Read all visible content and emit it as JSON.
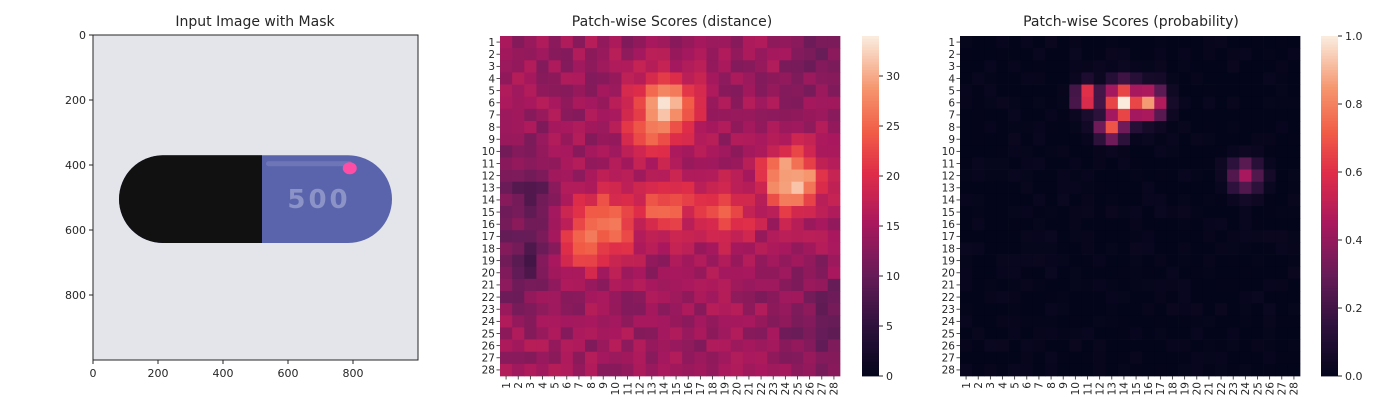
{
  "chart_data": [
    {
      "type": "image",
      "title": "Input Image with Mask",
      "xlim": [
        0,
        1000
      ],
      "ylim": [
        1000,
        0
      ],
      "xticks": [
        0,
        200,
        400,
        600,
        800
      ],
      "yticks": [
        0,
        200,
        400,
        600,
        800
      ],
      "image": {
        "background_color": "#e4e5eb",
        "object": "capsule",
        "object_label": "500",
        "cap_color": "#111111",
        "body_color": "#5a64ad",
        "mask_color": "#ff4da6",
        "capsule_extent_x": [
          80,
          920
        ],
        "capsule_extent_y": [
          370,
          640
        ],
        "cap_boundary_x": 520,
        "mask_center": [
          790,
          410
        ]
      }
    },
    {
      "type": "heatmap",
      "title": "Patch-wise Scores (distance)",
      "rows": 28,
      "cols": 28,
      "row_labels": [
        "1",
        "2",
        "3",
        "4",
        "5",
        "6",
        "7",
        "8",
        "9",
        "10",
        "11",
        "12",
        "13",
        "14",
        "15",
        "16",
        "17",
        "18",
        "19",
        "20",
        "21",
        "22",
        "23",
        "24",
        "25",
        "26",
        "27",
        "28"
      ],
      "col_labels": [
        "1",
        "2",
        "3",
        "4",
        "5",
        "6",
        "7",
        "8",
        "9",
        "10",
        "11",
        "12",
        "13",
        "14",
        "15",
        "16",
        "17",
        "18",
        "19",
        "20",
        "21",
        "22",
        "23",
        "24",
        "25",
        "26",
        "27",
        "28"
      ],
      "colormap": "rocket",
      "vmin": 0,
      "vmax": 34,
      "colorbar_ticks": [
        0,
        5,
        10,
        15,
        20,
        25,
        30
      ],
      "baseline": 14.5,
      "hotspots": [
        {
          "row": 6.5,
          "col": 14,
          "peak": 34,
          "sigma": 1.7
        },
        {
          "row": 8.5,
          "col": 13,
          "peak": 28,
          "sigma": 1.4
        },
        {
          "row": 12.3,
          "col": 24.5,
          "peak": 32,
          "sigma": 1.8
        },
        {
          "row": 16.2,
          "col": 9,
          "peak": 27,
          "sigma": 2.0
        },
        {
          "row": 17.5,
          "col": 7.5,
          "peak": 25,
          "sigma": 1.6
        },
        {
          "row": 14.5,
          "col": 14,
          "peak": 25,
          "sigma": 1.8
        },
        {
          "row": 15.2,
          "col": 19,
          "peak": 23,
          "sigma": 1.9
        }
      ],
      "low_regions": [
        {
          "row": 19,
          "col": 2.5,
          "value": 9,
          "sigma": 2.2
        },
        {
          "row": 13,
          "col": 2.5,
          "value": 10,
          "sigma": 2.0
        },
        {
          "row": 24,
          "col": 27.5,
          "value": 10,
          "sigma": 2.5
        },
        {
          "row": 2,
          "col": 27,
          "value": 11,
          "sigma": 2.0
        }
      ]
    },
    {
      "type": "heatmap",
      "title": "Patch-wise Scores (probability)",
      "rows": 28,
      "cols": 28,
      "row_labels": [
        "1",
        "2",
        "3",
        "4",
        "5",
        "6",
        "7",
        "8",
        "9",
        "10",
        "11",
        "12",
        "13",
        "14",
        "15",
        "16",
        "17",
        "18",
        "19",
        "20",
        "21",
        "22",
        "23",
        "24",
        "25",
        "26",
        "27",
        "28"
      ],
      "col_labels": [
        "1",
        "2",
        "3",
        "4",
        "5",
        "6",
        "7",
        "8",
        "9",
        "10",
        "11",
        "12",
        "13",
        "14",
        "15",
        "16",
        "17",
        "18",
        "19",
        "20",
        "21",
        "22",
        "23",
        "24",
        "25",
        "26",
        "27",
        "28"
      ],
      "colormap": "rocket",
      "vmin": 0.0,
      "vmax": 1.0,
      "colorbar_ticks": [
        "0.0",
        "0.2",
        "0.4",
        "0.6",
        "0.8",
        "1.0"
      ],
      "baseline": 0.0,
      "hotspots": [
        {
          "row": 6,
          "col": 14,
          "peak": 1.0,
          "sigma": 1.1
        },
        {
          "row": 5.5,
          "col": 11,
          "peak": 0.75,
          "sigma": 0.7
        },
        {
          "row": 6,
          "col": 16,
          "peak": 0.85,
          "sigma": 0.9
        },
        {
          "row": 8,
          "col": 13,
          "peak": 0.7,
          "sigma": 0.8
        },
        {
          "row": 12,
          "col": 24,
          "peak": 0.45,
          "sigma": 0.9
        }
      ],
      "low_regions": []
    }
  ]
}
